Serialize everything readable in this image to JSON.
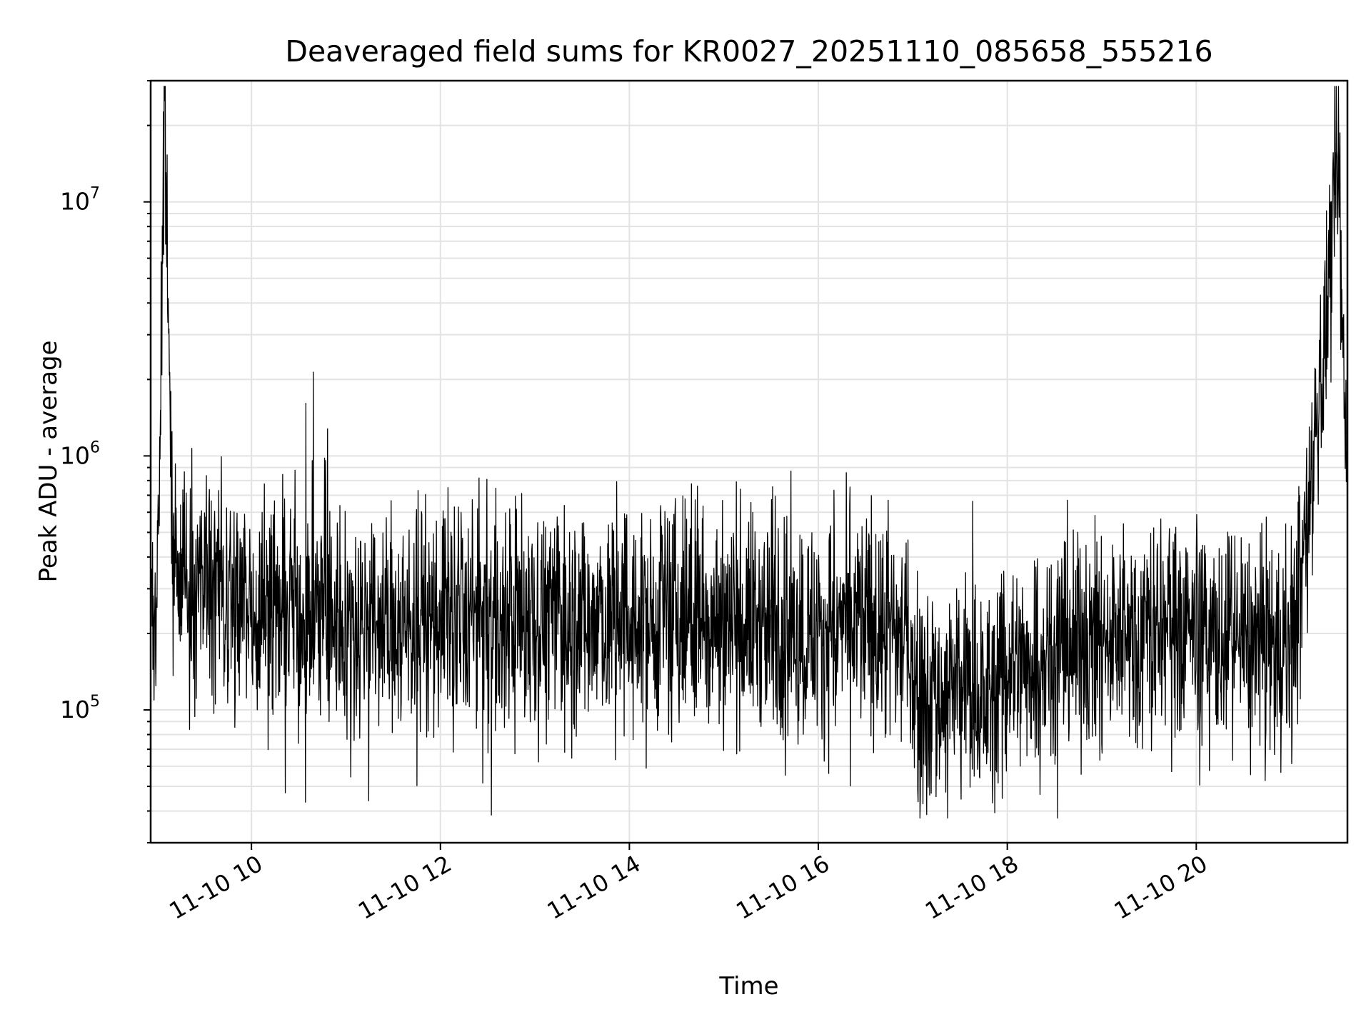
{
  "chart_data": {
    "type": "line",
    "title": "Deaveraged field sums for KR0027_20251110_085658_555216",
    "xlabel": "Time",
    "ylabel": "Peak ADU - average",
    "yscale": "log",
    "ylim": [
      30000,
      30000000
    ],
    "xlim": [
      "2025-11-10 08:56",
      "2025-11-10 21:36"
    ],
    "x_ticks": [
      {
        "value": "2025-11-10 10:00",
        "label": "11-10 10"
      },
      {
        "value": "2025-11-10 12:00",
        "label": "11-10 12"
      },
      {
        "value": "2025-11-10 14:00",
        "label": "11-10 14"
      },
      {
        "value": "2025-11-10 16:00",
        "label": "11-10 16"
      },
      {
        "value": "2025-11-10 18:00",
        "label": "11-10 18"
      },
      {
        "value": "2025-11-10 20:00",
        "label": "11-10 20"
      }
    ],
    "y_ticks": [
      {
        "value": 100000,
        "base": "10",
        "exp": "5"
      },
      {
        "value": 1000000,
        "base": "10",
        "exp": "6"
      },
      {
        "value": 10000000,
        "base": "10",
        "exp": "7"
      }
    ],
    "grid": true,
    "legend": "none",
    "line_color": "#000000",
    "series": [
      {
        "x": [
          "2025-11-10 08:56",
          "2025-11-10 09:00",
          "2025-11-10 09:05",
          "2025-11-10 09:10",
          "2025-11-10 09:15",
          "2025-11-10 09:30",
          "2025-11-10 09:45",
          "2025-11-10 10:00",
          "2025-11-10 10:30",
          "2025-11-10 11:00",
          "2025-11-10 11:30",
          "2025-11-10 12:00",
          "2025-11-10 12:30",
          "2025-11-10 13:00",
          "2025-11-10 13:30",
          "2025-11-10 14:00",
          "2025-11-10 14:30",
          "2025-11-10 15:00",
          "2025-11-10 15:30",
          "2025-11-10 16:00",
          "2025-11-10 16:30",
          "2025-11-10 16:55",
          "2025-11-10 17:05",
          "2025-11-10 17:30",
          "2025-11-10 17:50",
          "2025-11-10 18:00",
          "2025-11-10 18:30",
          "2025-11-10 19:00",
          "2025-11-10 19:30",
          "2025-11-10 20:00",
          "2025-11-10 20:30",
          "2025-11-10 21:00",
          "2025-11-10 21:10",
          "2025-11-10 21:20",
          "2025-11-10 21:30",
          "2025-11-10 21:36"
        ],
        "y": [
          230000,
          300000,
          22000000,
          420000,
          320000,
          330000,
          280000,
          260000,
          250000,
          230000,
          220000,
          230000,
          220000,
          240000,
          230000,
          210000,
          220000,
          230000,
          220000,
          200000,
          220000,
          190000,
          110000,
          120000,
          110000,
          140000,
          180000,
          190000,
          210000,
          200000,
          180000,
          170000,
          450000,
          2300000,
          13000000,
          750000
        ]
      }
    ],
    "annotations": []
  }
}
